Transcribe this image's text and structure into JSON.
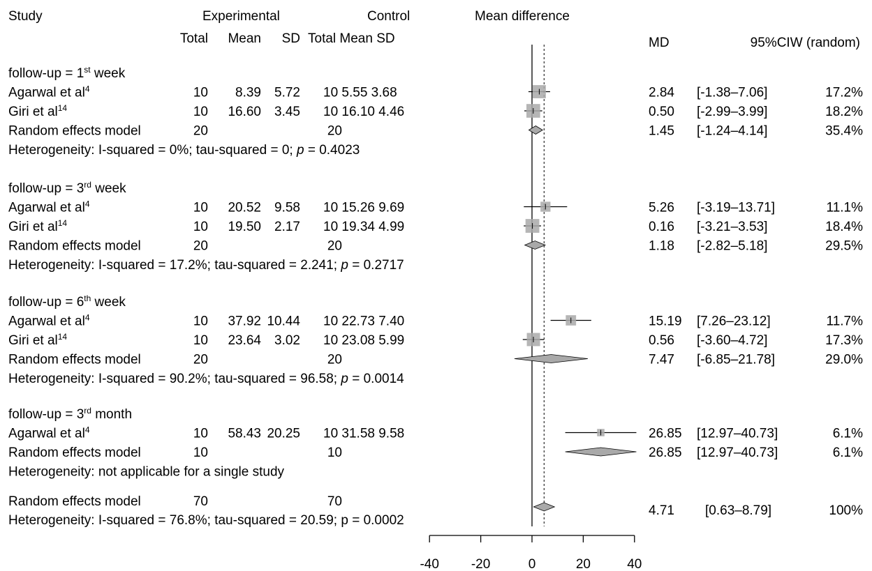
{
  "chart_data": {
    "type": "forest",
    "headers": {
      "study": "Study",
      "experimental": "Experimental",
      "control": "Control",
      "mean_difference": "Mean difference",
      "total": "Total",
      "mean": "Mean",
      "sd": "SD",
      "control_sub": "Total Mean SD",
      "md": "MD",
      "ci": "95%CIW (random)"
    },
    "xaxis": {
      "ticks": [
        -40,
        -20,
        0,
        20,
        40
      ],
      "range": [
        -40,
        40
      ]
    },
    "dashed_reference_line": 4.71,
    "groups": [
      {
        "label": "follow-up = 1",
        "label_sup": "st",
        "label_suffix": " week",
        "studies": [
          {
            "name": "Agarwal et al",
            "ref": "4",
            "e_total": "10",
            "e_mean": "8.39",
            "e_sd": "5.72",
            "control": "10  5.55 3.68",
            "md": 2.84,
            "md_text": "2.84",
            "lo": -1.38,
            "hi": 7.06,
            "ci_text": "[-1.38–7.06]",
            "weight": "17.2%"
          },
          {
            "name": "Giri et al",
            "ref": "14",
            "e_total": "10",
            "e_mean": "16.60",
            "e_sd": "3.45",
            "control": "10 16.10 4.46",
            "md": 0.5,
            "md_text": "0.50",
            "lo": -2.99,
            "hi": 3.99,
            "ci_text": "[-2.99–3.99]",
            "weight": "18.2%"
          }
        ],
        "pooled": {
          "label": "Random effects model",
          "e_total": "20",
          "c_total": "20",
          "md": 1.45,
          "md_text": "1.45",
          "lo": -1.24,
          "hi": 4.14,
          "ci_text": "[-1.24–4.14]",
          "weight": "35.4%"
        },
        "heterogeneity": {
          "prefix": "Heterogeneity: I-squared = 0%; tau-squared = 0; ",
          "p_symbol": "p",
          "suffix": " = 0.4023"
        }
      },
      {
        "label": "follow-up = 3",
        "label_sup": "rd",
        "label_suffix": " week",
        "studies": [
          {
            "name": "Agarwal et al",
            "ref": "4",
            "e_total": "10",
            "e_mean": "20.52",
            "e_sd": "9.58",
            "control": "10 15.26 9.69",
            "md": 5.26,
            "md_text": "5.26",
            "lo": -3.19,
            "hi": 13.71,
            "ci_text": "[-3.19–13.71]",
            "weight": "11.1%"
          },
          {
            "name": "Giri et al",
            "ref": "14",
            "e_total": "10",
            "e_mean": "19.50",
            "e_sd": "2.17",
            "control": "10 19.34 4.99",
            "md": 0.16,
            "md_text": "0.16",
            "lo": -3.21,
            "hi": 3.53,
            "ci_text": "[-3.21–3.53]",
            "weight": "18.4%"
          }
        ],
        "pooled": {
          "label": "Random effects model",
          "e_total": "20",
          "c_total": "20",
          "md": 1.18,
          "md_text": "1.18",
          "lo": -2.82,
          "hi": 5.18,
          "ci_text": "[-2.82–5.18]",
          "weight": "29.5%"
        },
        "heterogeneity": {
          "prefix": "Heterogeneity: I-squared = 17.2%; tau-squared = 2.241; ",
          "p_symbol": "p",
          "suffix": " = 0.2717"
        }
      },
      {
        "label": "follow-up = 6",
        "label_sup": "th",
        "label_suffix": " week",
        "studies": [
          {
            "name": "Agarwal et al",
            "ref": "4",
            "e_total": "10",
            "e_mean": "37.92",
            "e_sd": "10.44",
            "control": "10 22.73 7.40",
            "md": 15.19,
            "md_text": "15.19",
            "lo": 7.26,
            "hi": 23.12,
            "ci_text": "[7.26–23.12]",
            "weight": "11.7%"
          },
          {
            "name": "Giri et al",
            "ref": "14",
            "e_total": "10",
            "e_mean": "23.64",
            "e_sd": "3.02",
            "control": "10 23.08 5.99",
            "md": 0.56,
            "md_text": "0.56",
            "lo": -3.6,
            "hi": 4.72,
            "ci_text": "[-3.60–4.72]",
            "weight": "17.3%"
          }
        ],
        "pooled": {
          "label": "Random effects model",
          "e_total": "20",
          "c_total": "20",
          "md": 7.47,
          "md_text": "7.47",
          "lo": -6.85,
          "hi": 21.78,
          "ci_text": "[-6.85–21.78]",
          "weight": "29.0%"
        },
        "heterogeneity": {
          "prefix": "Heterogeneity: I-squared = 90.2%; tau-squared = 96.58; ",
          "p_symbol": "p",
          "suffix": " = 0.0014"
        }
      },
      {
        "label": "follow-up = 3",
        "label_sup": "rd",
        "label_suffix": " month",
        "studies": [
          {
            "name": "Agarwal et al",
            "ref": "4",
            "e_total": "10",
            "e_mean": "58.43",
            "e_sd": "20.25",
            "control": "10 31.58 9.58",
            "md": 26.85,
            "md_text": "26.85",
            "lo": 12.97,
            "hi": 40.73,
            "ci_text": "[12.97–40.73]",
            "weight": "6.1%"
          }
        ],
        "pooled": {
          "label": "Random effects model",
          "e_total": "10",
          "c_total": "10",
          "md": 26.85,
          "md_text": "26.85",
          "lo": 12.97,
          "hi": 40.73,
          "ci_text": "[12.97–40.73]",
          "weight": "6.1%"
        },
        "heterogeneity": {
          "prefix": "Heterogeneity: not applicable for a single study",
          "p_symbol": "",
          "suffix": ""
        }
      }
    ],
    "overall": {
      "label": "Random effects model",
      "e_total": "70",
      "c_total": "70",
      "md": 4.71,
      "md_text": "4.71",
      "lo": 0.63,
      "hi": 8.79,
      "ci_text": "[0.63–8.79]",
      "weight": "100%",
      "heterogeneity": "Heterogeneity: I-squared = 76.8%; tau-squared = 20.59; p = 0.0002"
    }
  }
}
